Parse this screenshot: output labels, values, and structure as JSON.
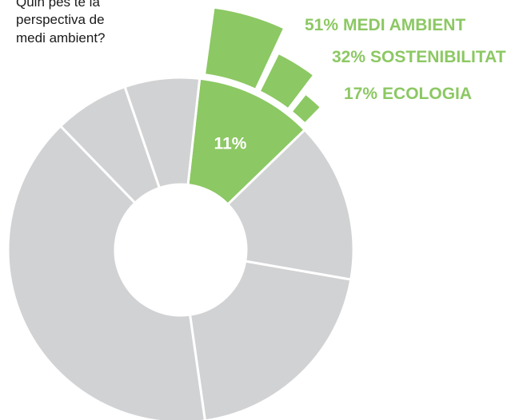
{
  "chart_data": {
    "type": "pie",
    "title": [
      "Quin pes té la",
      "perspectiva de",
      "medi ambient?"
    ],
    "categories": [
      null,
      null,
      null,
      null,
      null,
      null
    ],
    "values": [
      11,
      15,
      20,
      40,
      7,
      7
    ],
    "colors": [
      "#8cc863",
      "#d1d2d4",
      "#d1d2d4",
      "#d1d2d4",
      "#d1d2d4",
      "#d1d2d4"
    ],
    "value_labels": [
      "11%",
      null,
      null,
      null,
      null,
      null
    ],
    "breakdown": {
      "categories": [
        "MEDI AMBIENT",
        "SOSTENIBILITAT",
        "ECOLOGIA"
      ],
      "values": [
        51,
        32,
        17
      ],
      "value_labels": [
        "51%",
        "32%",
        "17%"
      ],
      "color": "#8cc863"
    }
  }
}
